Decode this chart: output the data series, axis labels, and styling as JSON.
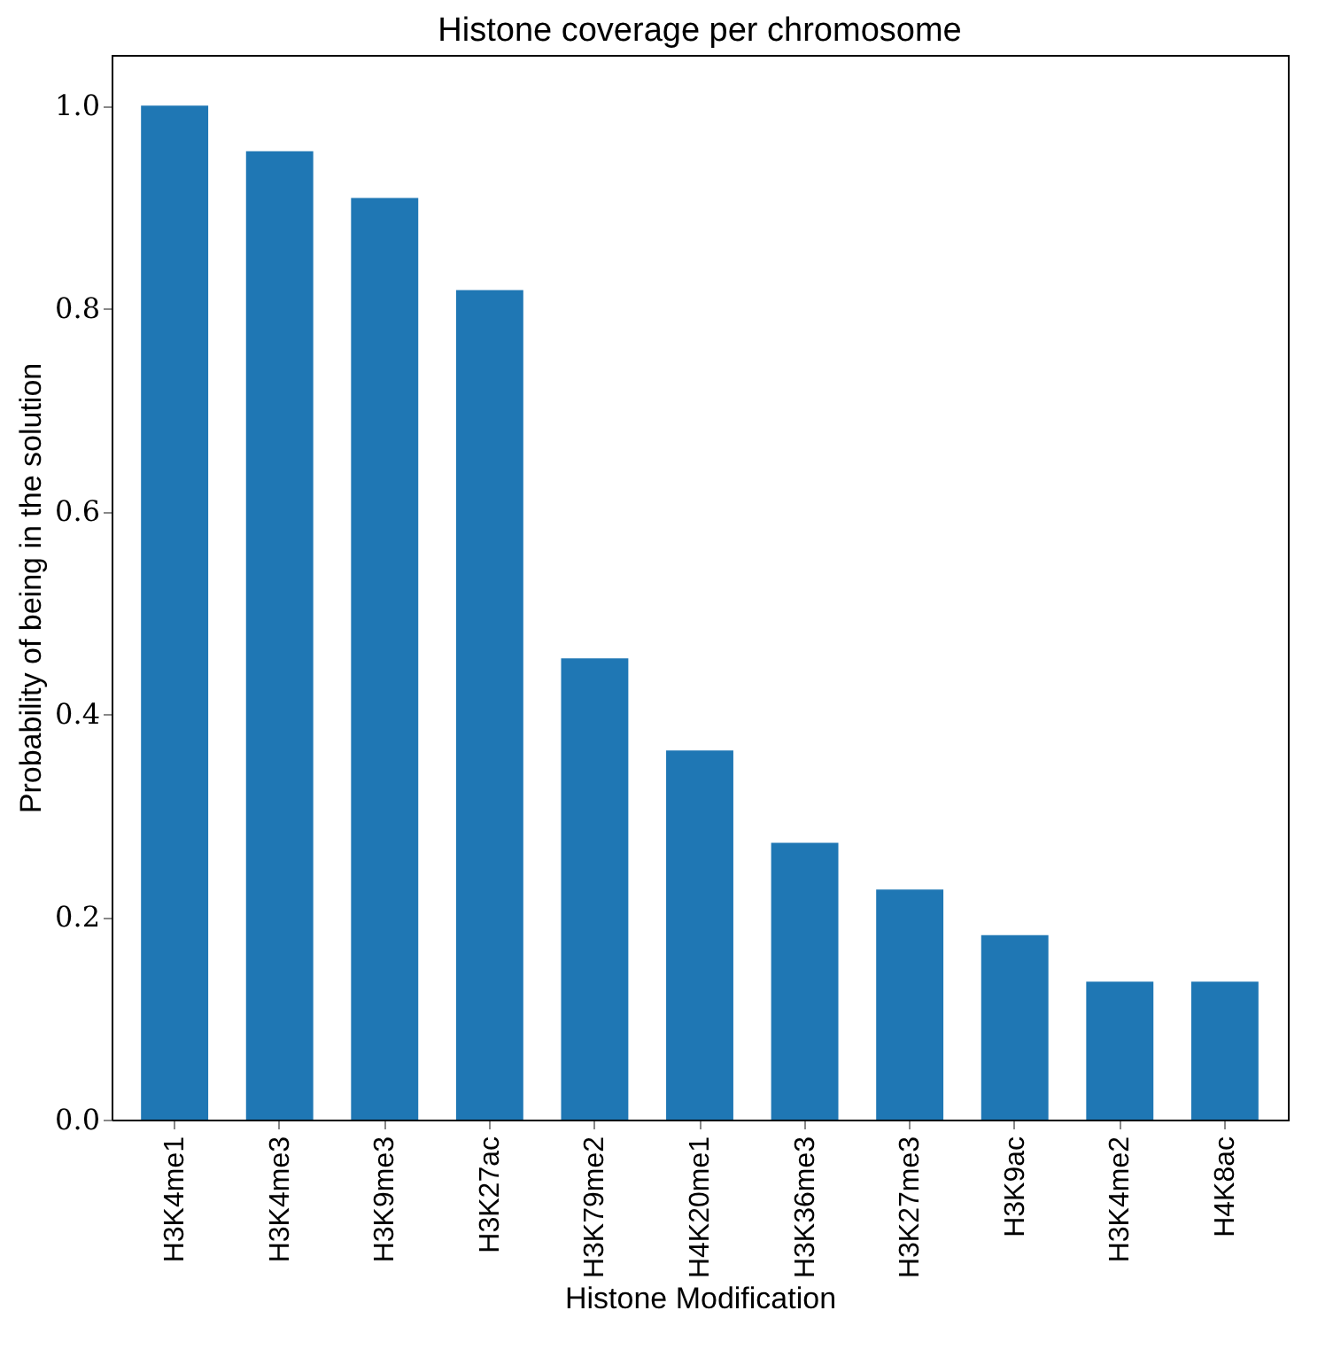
{
  "chart_data": {
    "type": "bar",
    "title": "Histone coverage per chromosome",
    "xlabel": "Histone Modification",
    "ylabel": "Probability of being in the solution",
    "categories": [
      "H3K4me1",
      "H3K4me3",
      "H3K9me3",
      "H3K27ac",
      "H3K79me2",
      "H4K20me1",
      "H3K36me3",
      "H3K27me3",
      "H3K9ac",
      "H3K4me2",
      "H4K8ac"
    ],
    "values": [
      1.0,
      0.955,
      0.909,
      0.818,
      0.455,
      0.364,
      0.273,
      0.227,
      0.182,
      0.136,
      0.136
    ],
    "color": "#1f77b4",
    "ylim": [
      0,
      1.05
    ],
    "yticks": [
      {
        "value": 0,
        "label": "0.0"
      },
      0.2,
      0.4,
      0.6,
      0.8,
      {
        "value": 1,
        "label": "1.0"
      }
    ],
    "grid": false
  }
}
